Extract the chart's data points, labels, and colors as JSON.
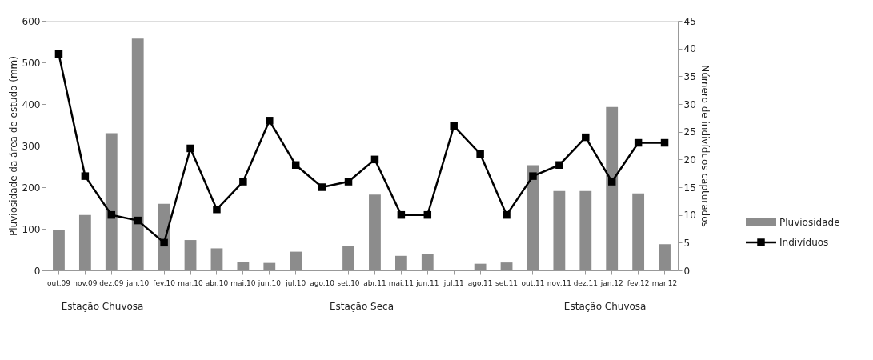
{
  "chart_data": {
    "type": "bar",
    "categories": [
      "out.09",
      "nov.09",
      "dez.09",
      "jan.10",
      "fev.10",
      "mar.10",
      "abr.10",
      "mai.10",
      "jun.10",
      "jul.10",
      "ago.10",
      "set.10",
      "abr.11",
      "mai.11",
      "jun.11",
      "jul.11",
      "ago.11",
      "set.11",
      "out.11",
      "nov.11",
      "dez.11",
      "jan.12",
      "fev.12",
      "mar.12"
    ],
    "ylabel": "Pluviosidade da área de estudo (mm)",
    "y2label": "Número de indivíduos capturados",
    "ylim": [
      0,
      600
    ],
    "yticks": [
      0,
      100,
      200,
      300,
      400,
      500,
      600
    ],
    "y2lim": [
      0,
      45
    ],
    "y2ticks": [
      0,
      5,
      10,
      15,
      20,
      25,
      30,
      35,
      40,
      45
    ],
    "series": [
      {
        "name": "Pluviosidade",
        "color": "#8c8c8c",
        "values": [
          97,
          133,
          330,
          557,
          160,
          73,
          53,
          20,
          18,
          45,
          null,
          58,
          182,
          35,
          40,
          null,
          16,
          19,
          253,
          191,
          191,
          393,
          185,
          63
        ]
      },
      {
        "name": "Indivíduos",
        "type": "line",
        "axis": "y2",
        "color": "#000000",
        "marker": "square",
        "line_style": "solid",
        "values": [
          39,
          17,
          10,
          9,
          5,
          22,
          11,
          16,
          27,
          19,
          15,
          16,
          20,
          10,
          10,
          26,
          21,
          10,
          17,
          19,
          24,
          16,
          23,
          23
        ]
      }
    ],
    "annotations": [
      "Estação Chuvosa",
      "Estação Seca",
      "Estação Chuvosa"
    ],
    "grid": false,
    "legend": "bottom right"
  }
}
